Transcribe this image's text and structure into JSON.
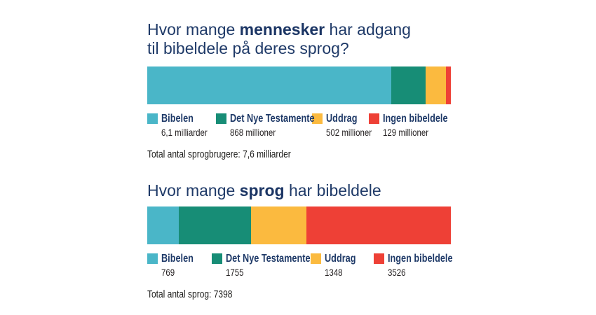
{
  "page": {
    "background": "#ffffff",
    "title_color": "#1f3a68",
    "text_color": "#231f20"
  },
  "chart_data": [
    {
      "type": "bar",
      "orientation": "horizontal_stacked",
      "axis": "none",
      "legend_position": "bottom",
      "title": "Hvor mange mennesker har adgang til bibeldele på deres sprog?",
      "title_rich": {
        "pre": "Hvor mange ",
        "bold": "mennesker",
        "post": " har adgang",
        "line2": "til bibeldele på deres sprog?"
      },
      "categories": [
        "Bibelen",
        "Det Nye Testamente",
        "Uddrag",
        "Ingen bibeldele"
      ],
      "values": [
        6100,
        868,
        502,
        129
      ],
      "value_labels": [
        "6,1 milliarder",
        "868 millioner",
        "502 millioner",
        "129 millioner"
      ],
      "segment_colors": [
        "#4ab6c8",
        "#178d76",
        "#fbba3f",
        "#ee4036"
      ],
      "total_label": "Total antal sprogbrugere: 7,6 milliarder"
    },
    {
      "type": "bar",
      "orientation": "horizontal_stacked",
      "axis": "none",
      "legend_position": "bottom",
      "title": "Hvor mange sprog har bibeldele",
      "title_rich": {
        "pre": "Hvor mange ",
        "bold": "sprog",
        "post": " har bibeldele",
        "line2": ""
      },
      "categories": [
        "Bibelen",
        "Det Nye Testamente",
        "Uddrag",
        "Ingen bibeldele"
      ],
      "values": [
        769,
        1755,
        1348,
        3526
      ],
      "value_labels": [
        "769",
        "1755",
        "1348",
        "3526"
      ],
      "segment_colors": [
        "#4ab6c8",
        "#178d76",
        "#fbba3f",
        "#ee4036"
      ],
      "total_label": "Total antal sprog: 7398"
    }
  ]
}
